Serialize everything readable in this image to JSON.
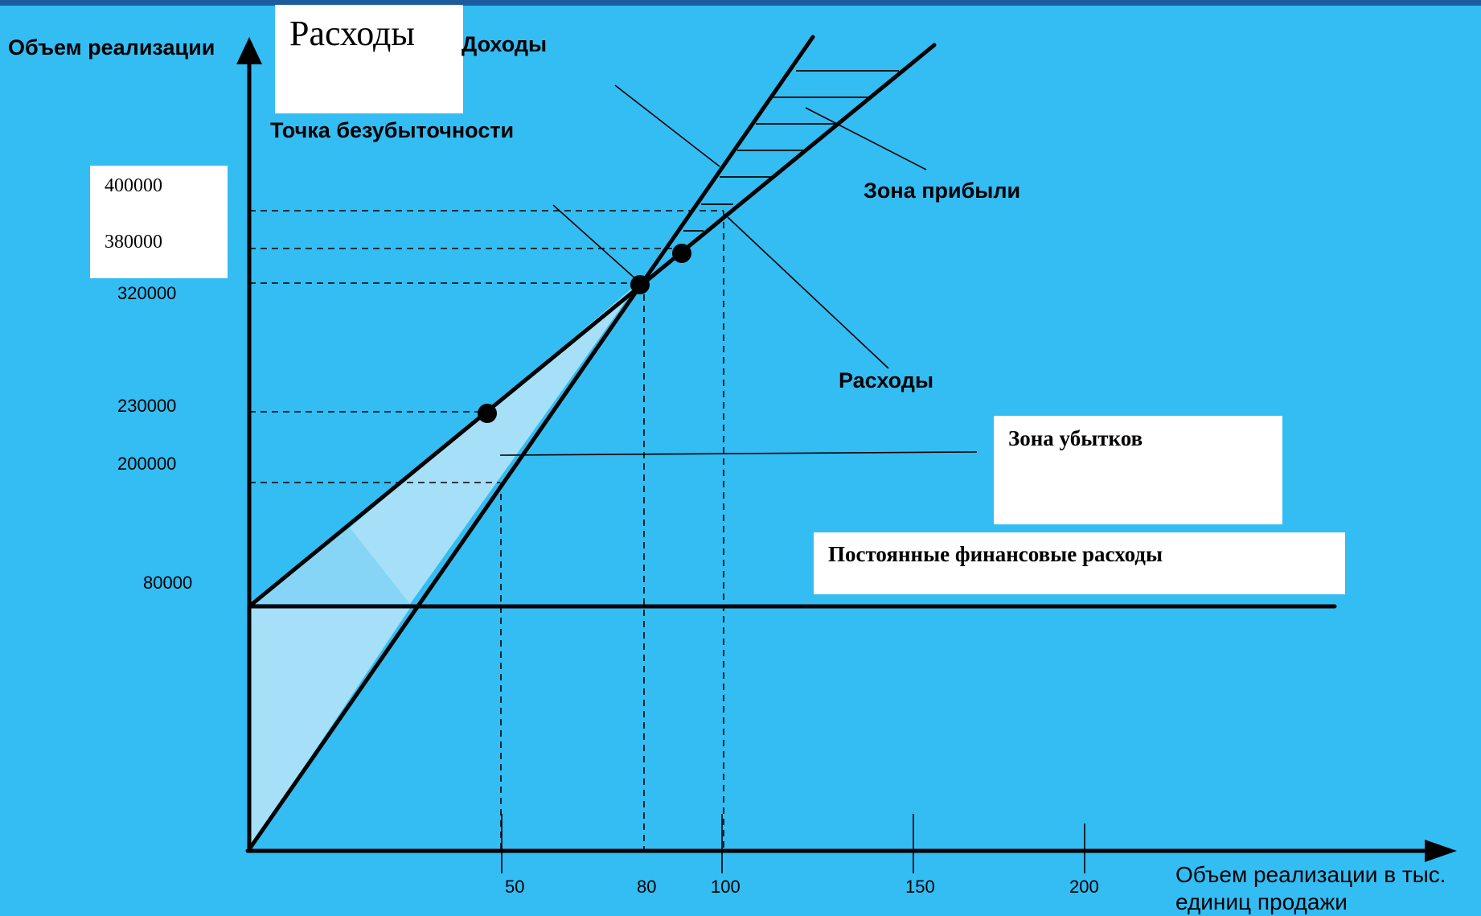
{
  "labels": {
    "y_axis": "Объем реализации",
    "income_header": "Доходы",
    "expenses_box": "Расходы",
    "breakeven": "Точка безубыточности",
    "profit_zone": "Зона прибыли",
    "expenses": "Расходы",
    "loss_zone": "Зона убытков",
    "fixed_costs": "Постоянные финансовые расходы",
    "x_axis_line1": "Объем реализации в тыс.",
    "x_axis_line2": "единиц продажи"
  },
  "y_ticks": {
    "v400000": "400000",
    "v380000": "380000",
    "v320000": "320000",
    "v230000": "230000",
    "v200000": "200000",
    "v80000": "80000"
  },
  "x_ticks": {
    "v50": "50",
    "v80": "80",
    "v100": "100",
    "v150": "150",
    "v200": "200"
  },
  "colors": {
    "background": "#33bdf3",
    "top_bar": "#1c5b9e",
    "fill_light": "#a5e0f8",
    "fill_mid": "#86d5f6",
    "line": "#000000"
  }
}
